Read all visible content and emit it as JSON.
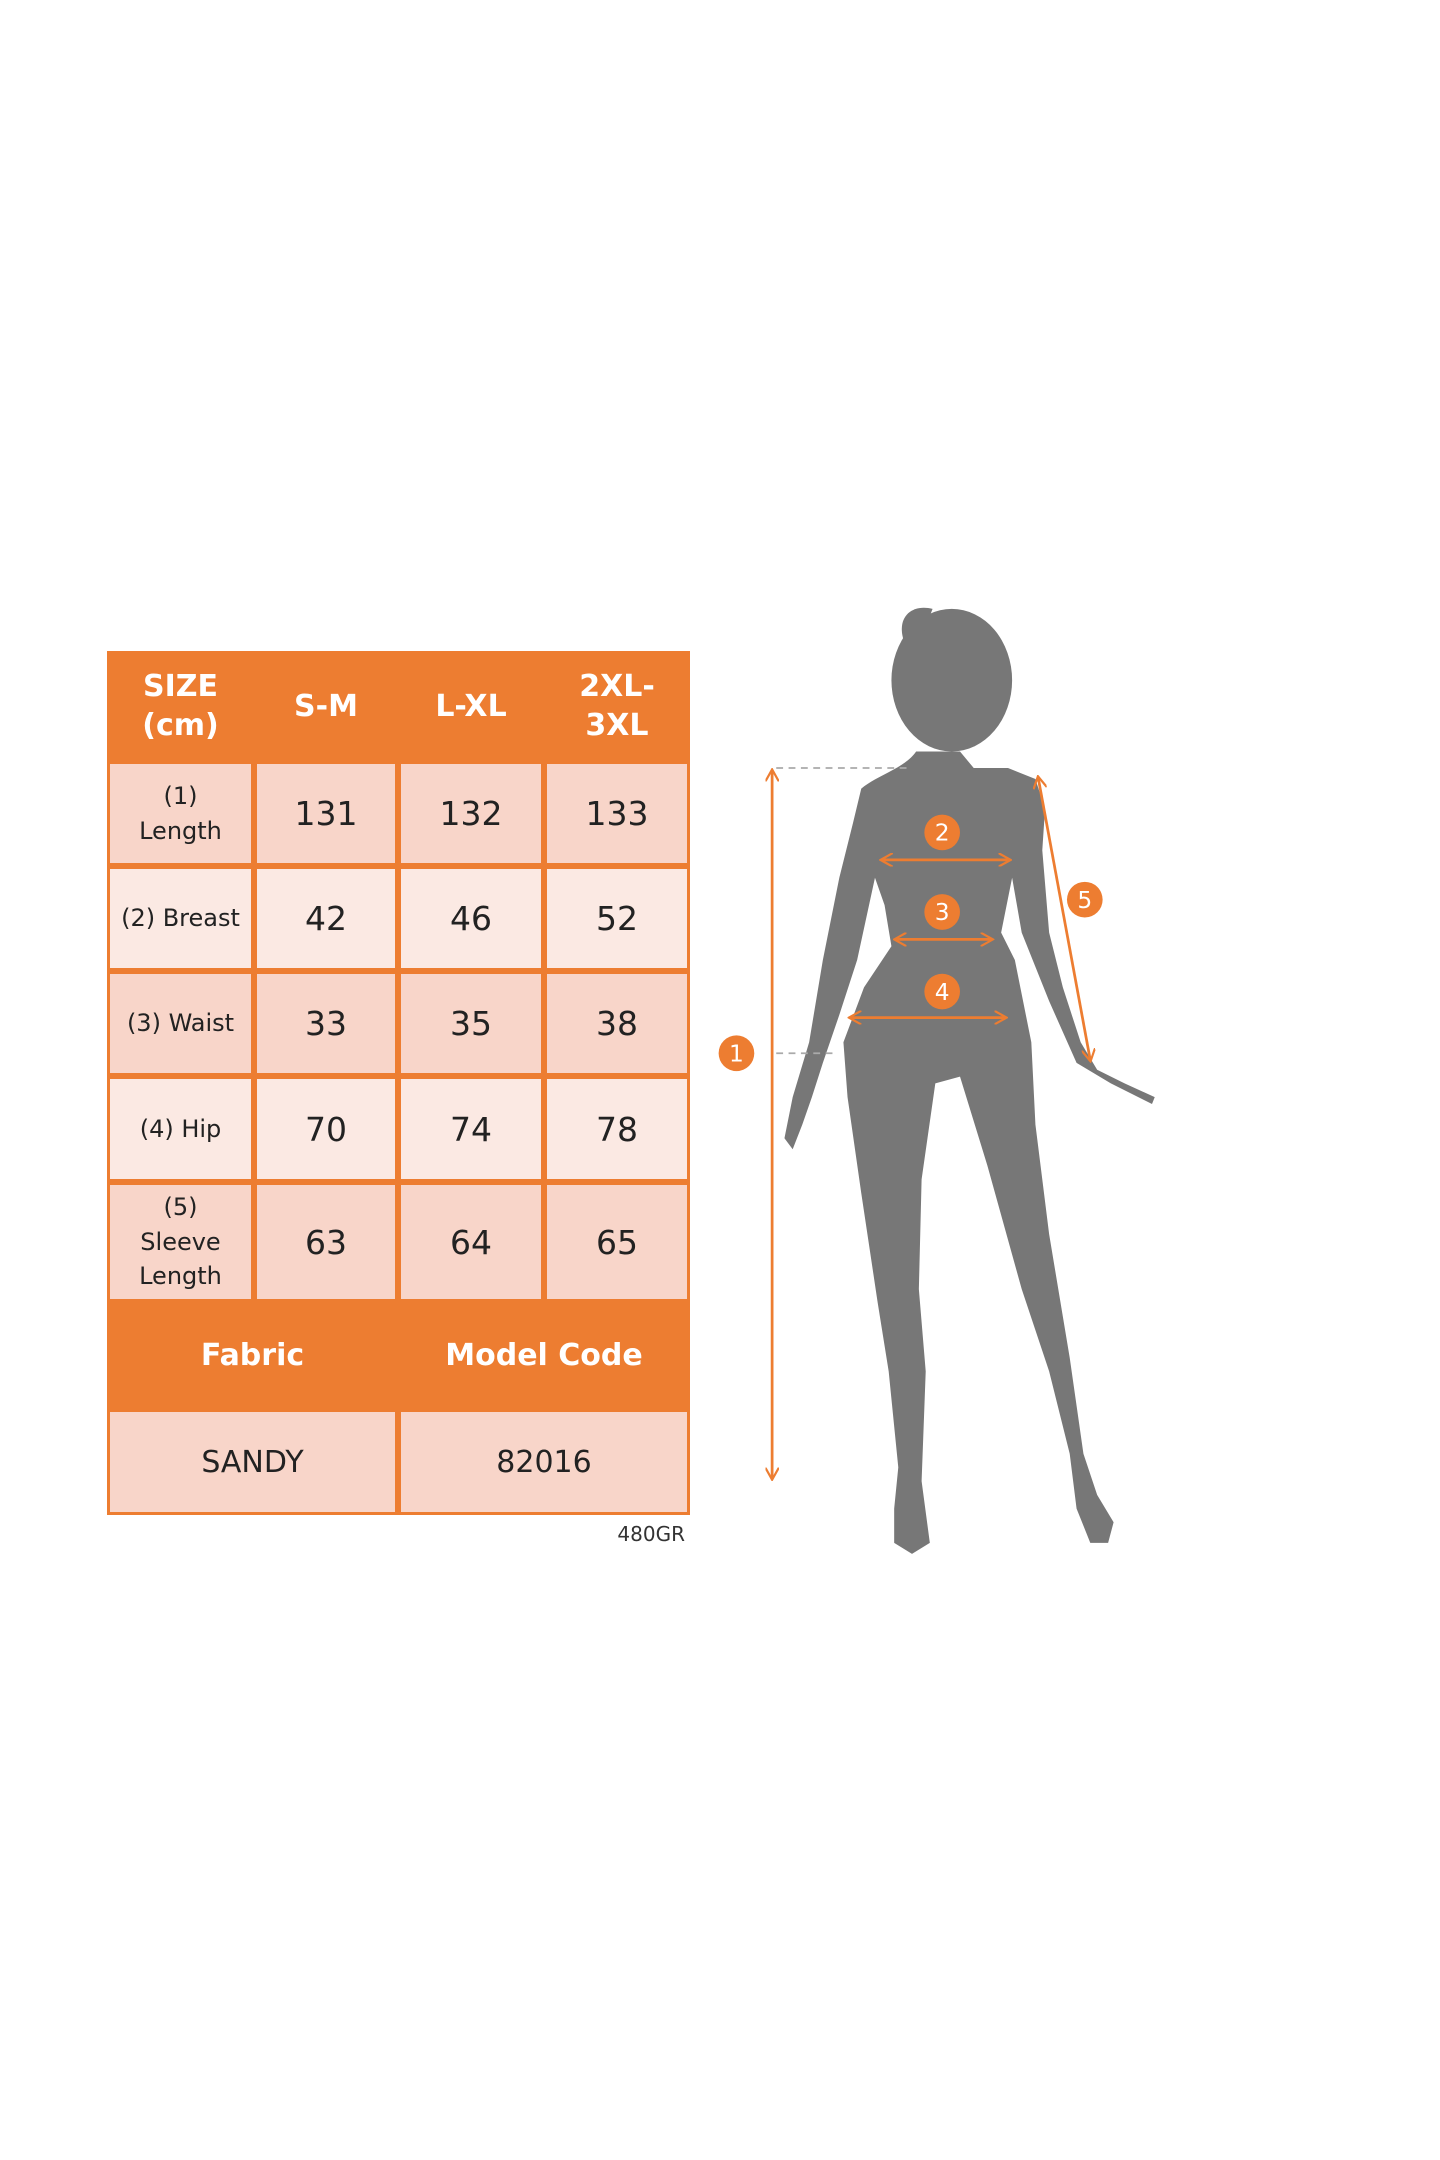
{
  "size_table": {
    "header": [
      "SIZE\n(cm)",
      "S-M",
      "L-XL",
      "2XL-\n3XL"
    ],
    "rows": [
      {
        "label": "(1)\nLength",
        "values": [
          "131",
          "132",
          "133"
        ]
      },
      {
        "label": "(2) Breast",
        "values": [
          "42",
          "46",
          "52"
        ]
      },
      {
        "label": "(3) Waist",
        "values": [
          "33",
          "35",
          "38"
        ]
      },
      {
        "label": "(4) Hip",
        "values": [
          "70",
          "74",
          "78"
        ]
      },
      {
        "label": "(5)\nSleeve\nLength",
        "values": [
          "63",
          "64",
          "65"
        ]
      }
    ],
    "info_header": [
      "Fabric",
      "Model Code"
    ],
    "info_values": [
      "SANDY",
      "82016"
    ],
    "product_code": "480GR"
  },
  "diagram": {
    "markers": [
      "1",
      "2",
      "3",
      "4",
      "5"
    ],
    "accent_color": "#ED7D31",
    "silhouette_color": "#777777"
  }
}
